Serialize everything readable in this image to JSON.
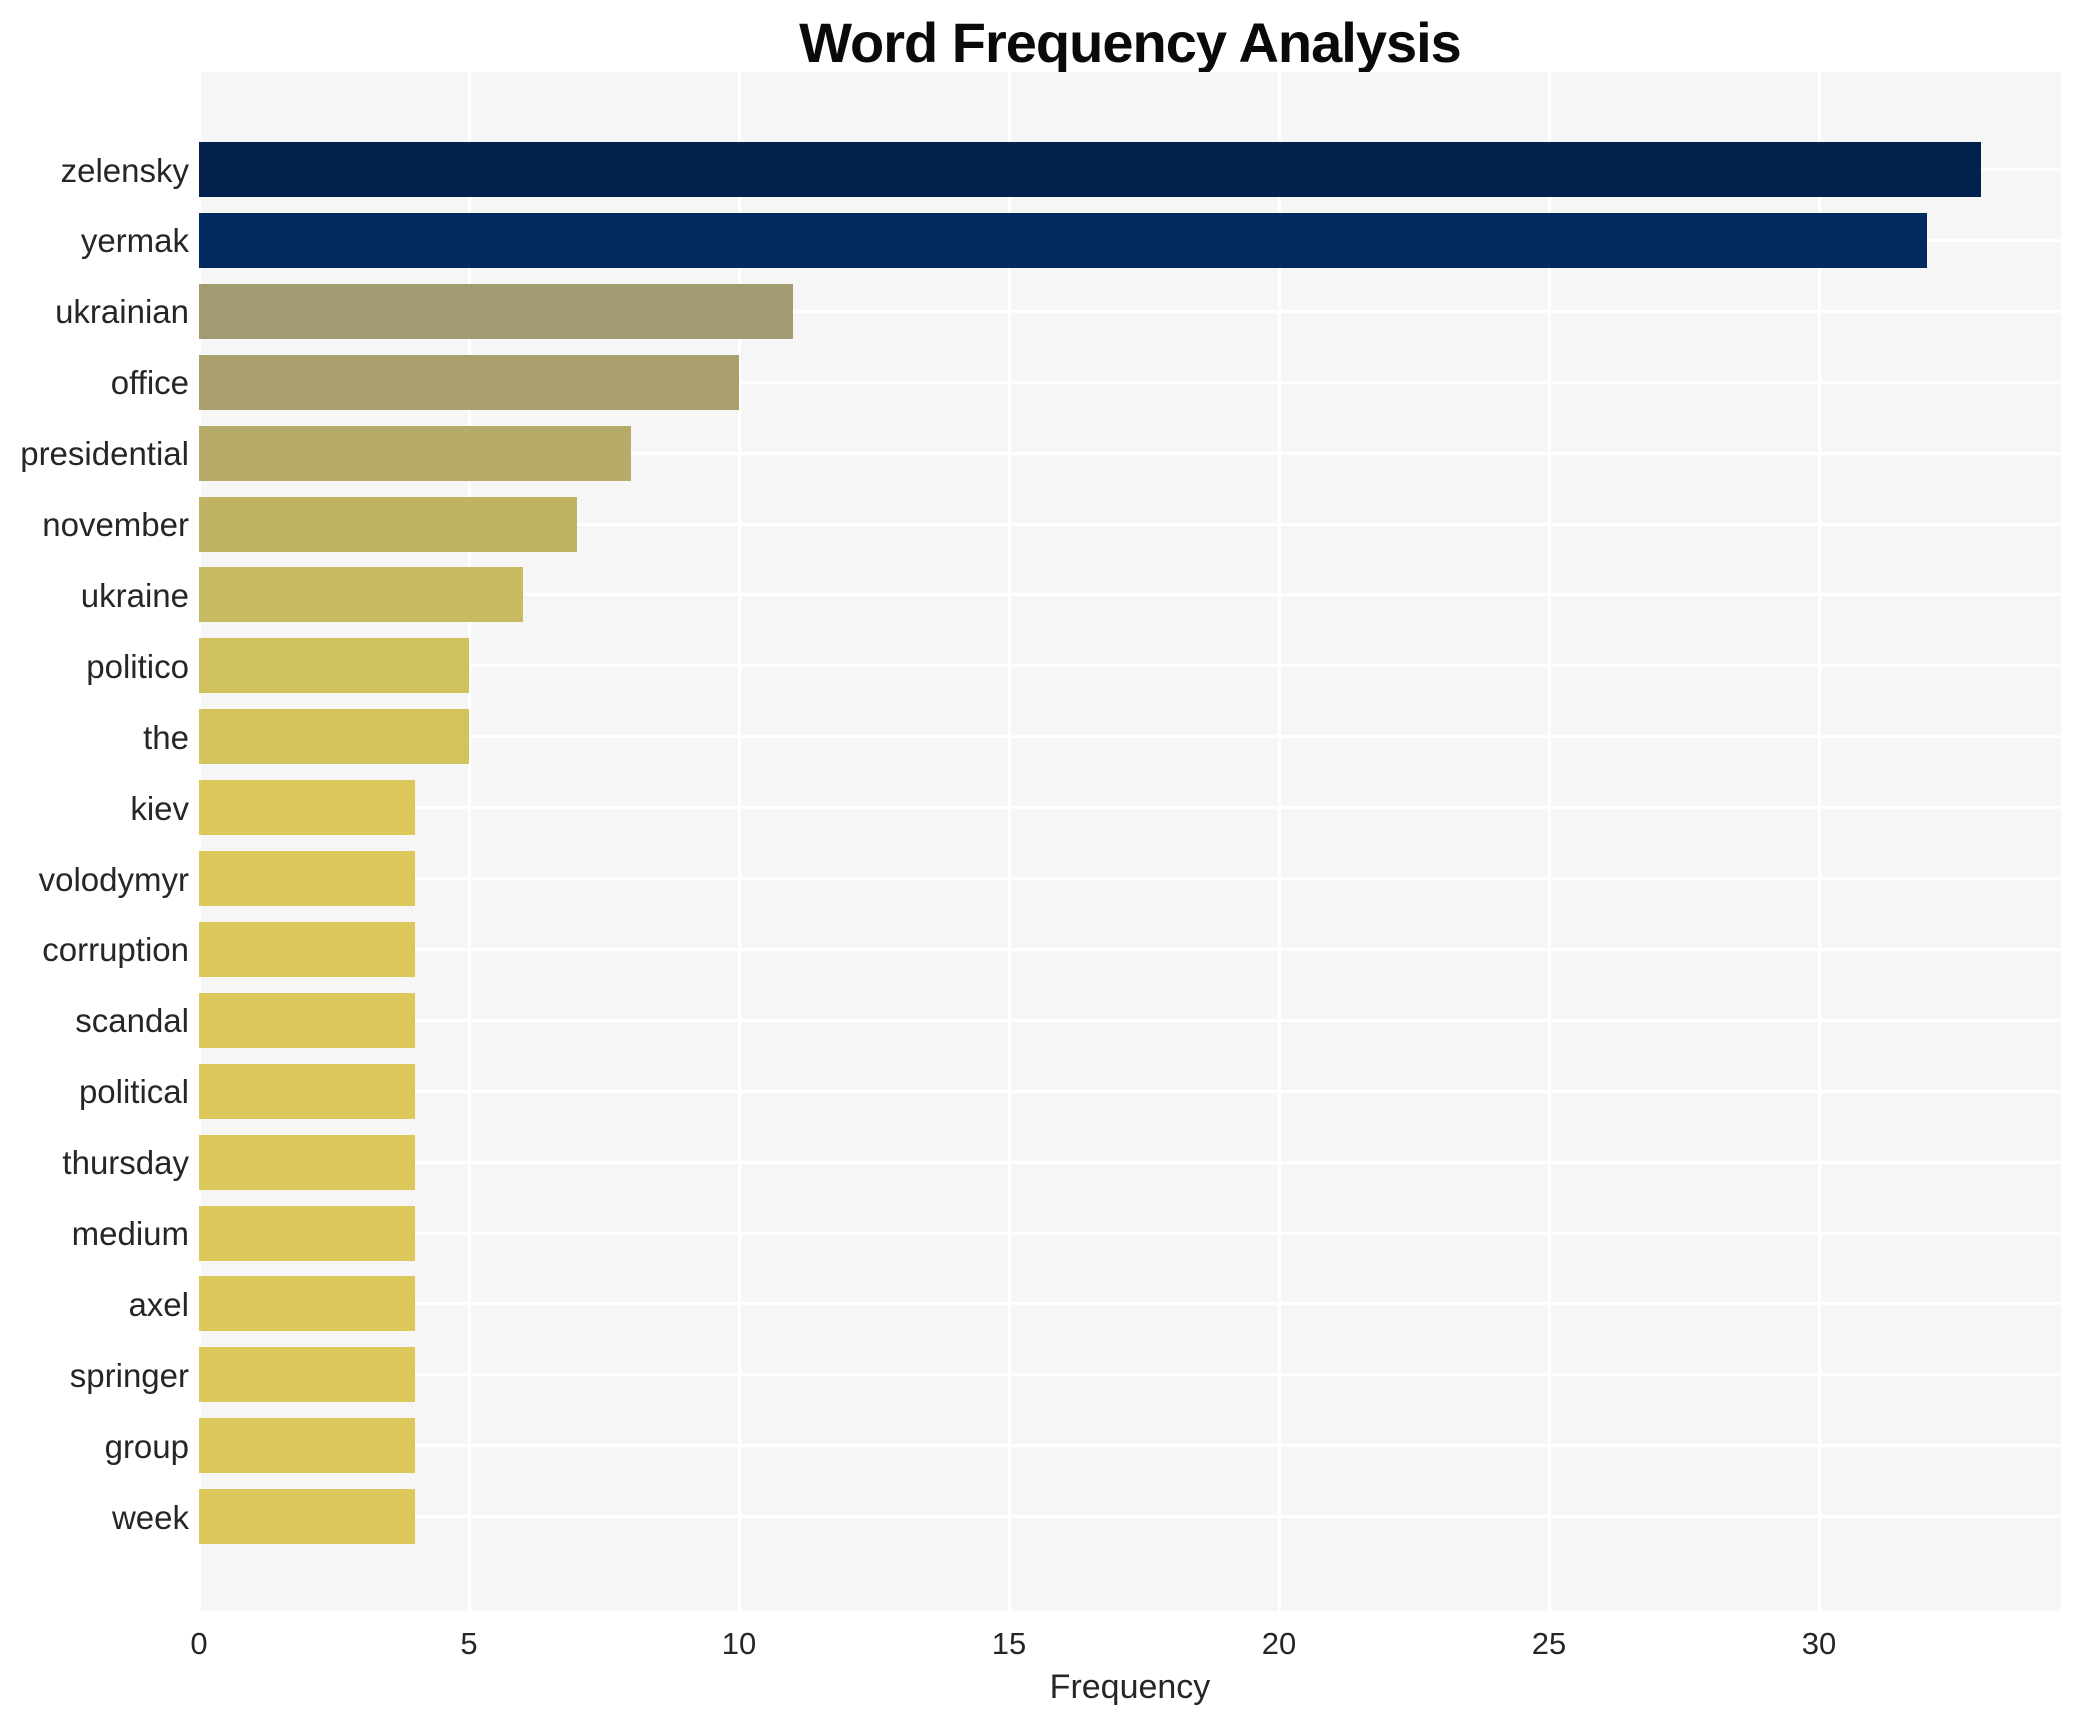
{
  "chart_data": {
    "type": "bar",
    "orientation": "horizontal",
    "title": "Word Frequency Analysis",
    "xlabel": "Frequency",
    "ylabel": "",
    "categories": [
      "zelensky",
      "yermak",
      "ukrainian",
      "office",
      "presidential",
      "november",
      "ukraine",
      "politico",
      "the",
      "kiev",
      "volodymyr",
      "corruption",
      "scandal",
      "political",
      "thursday",
      "medium",
      "axel",
      "springer",
      "group",
      "week"
    ],
    "values": [
      33,
      32,
      11,
      10,
      8,
      7,
      6,
      5,
      5,
      4,
      4,
      4,
      4,
      4,
      4,
      4,
      4,
      4,
      4,
      4
    ],
    "bar_colors": [
      "#02214d",
      "#032a5f",
      "#a29a71",
      "#aaa06e",
      "#b6ab68",
      "#c0b464",
      "#c7ba60",
      "#cfc15d",
      "#d3c35c",
      "#ddc85b",
      "#ddc85b",
      "#ddc85b",
      "#ddc85b",
      "#ddc85b",
      "#ddc85b",
      "#ddc85b",
      "#ddc85b",
      "#ddc85b",
      "#ddc85b",
      "#ddc85b"
    ],
    "x_ticks": [
      0,
      5,
      10,
      15,
      20,
      25,
      30
    ],
    "xlim": [
      0,
      34.5
    ],
    "grid": true,
    "legend": "none",
    "plot_background": "#f6f6f7",
    "grid_color": "#ffffff",
    "text_color": "#262626",
    "title_color": "#0a0a0a"
  }
}
